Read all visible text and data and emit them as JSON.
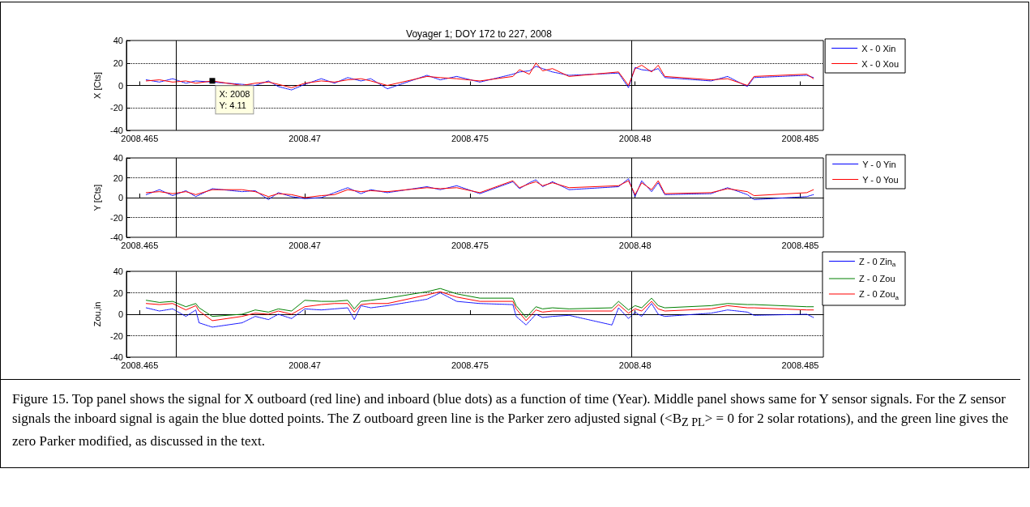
{
  "chart_data": [
    {
      "type": "line",
      "title": "Voyager 1; DOY 172 to 227, 2008",
      "ylabel": "X [Cts]",
      "xlim": [
        2008.4646,
        2008.4857
      ],
      "xticks": [
        2008.465,
        2008.47,
        2008.475,
        2008.48,
        2008.485
      ],
      "ylim": [
        -40,
        40
      ],
      "yticks": [
        -40,
        -20,
        0,
        20,
        40
      ],
      "grid": "y",
      "legend": "top right",
      "marker": "none",
      "x": [
        2008.4652,
        2008.4656,
        2008.466,
        2008.4664,
        2008.4667,
        2008.4672,
        2008.4681,
        2008.4685,
        2008.4689,
        2008.4692,
        2008.4696,
        2008.47,
        2008.4705,
        2008.4709,
        2008.4713,
        2008.4717,
        2008.472,
        2008.4725,
        2008.4737,
        2008.4741,
        2008.4746,
        2008.4753,
        2008.4763,
        2008.4765,
        2008.4768,
        2008.477,
        2008.4772,
        2008.4775,
        2008.478,
        2008.4795,
        2008.4798,
        2008.48,
        2008.4802,
        2008.4805,
        2008.4807,
        2008.4809,
        2008.4823,
        2008.4828,
        2008.4834,
        2008.4836,
        2008.4852,
        2008.4854
      ],
      "series": [
        {
          "name": "X - 0 Xin",
          "color": "#0000ff",
          "line_style": "dotted",
          "values": [
            5,
            3,
            6,
            2,
            4,
            3,
            1,
            0,
            4,
            -1,
            -4,
            1,
            6,
            2,
            7,
            4,
            6,
            -3,
            9,
            5,
            8,
            3,
            10,
            12,
            13,
            17,
            15,
            12,
            9,
            11,
            -2,
            16,
            14,
            13,
            15,
            7,
            4,
            8,
            -1,
            7,
            9,
            7
          ]
        },
        {
          "name": "X - 0 Xou",
          "color": "#ff0000",
          "line_style": "solid",
          "values": [
            4,
            5,
            3,
            4,
            2,
            4,
            0,
            2,
            3,
            1,
            -2,
            2,
            4,
            3,
            5,
            6,
            4,
            0,
            8,
            7,
            6,
            4,
            8,
            14,
            10,
            20,
            13,
            15,
            8,
            12,
            0,
            15,
            18,
            12,
            18,
            8,
            5,
            6,
            0,
            8,
            10,
            6
          ]
        }
      ],
      "ref_lines": [
        {
          "axis": "x",
          "value": 2008.4661,
          "color": "#000000"
        },
        {
          "axis": "x",
          "value": 2008.4799,
          "color": "#000000"
        }
      ],
      "annotations": [
        {
          "text": "X: 2008\nY: 4.11",
          "x": 2008.4672,
          "y": 4.11
        }
      ]
    },
    {
      "type": "line",
      "ylabel": "Y [Cts]",
      "xlim": [
        2008.4646,
        2008.4857
      ],
      "xticks": [
        2008.465,
        2008.47,
        2008.475,
        2008.48,
        2008.485
      ],
      "ylim": [
        -40,
        40
      ],
      "yticks": [
        -40,
        -20,
        0,
        20,
        40
      ],
      "grid": "y",
      "legend": "top right",
      "marker": "none",
      "x": [
        2008.4652,
        2008.4656,
        2008.466,
        2008.4664,
        2008.4667,
        2008.4672,
        2008.4681,
        2008.4685,
        2008.4689,
        2008.4692,
        2008.4696,
        2008.47,
        2008.4705,
        2008.4709,
        2008.4713,
        2008.4717,
        2008.472,
        2008.4725,
        2008.4737,
        2008.4741,
        2008.4746,
        2008.4753,
        2008.4763,
        2008.4765,
        2008.4768,
        2008.477,
        2008.4772,
        2008.4775,
        2008.478,
        2008.4795,
        2008.4798,
        2008.48,
        2008.4802,
        2008.4805,
        2008.4807,
        2008.4809,
        2008.4823,
        2008.4828,
        2008.4834,
        2008.4836,
        2008.4852,
        2008.4854
      ],
      "series": [
        {
          "name": "Y - 0 Yin",
          "color": "#0000ff",
          "line_style": "dotted",
          "values": [
            3,
            8,
            2,
            7,
            1,
            9,
            6,
            7,
            -2,
            5,
            1,
            -1,
            0,
            5,
            10,
            4,
            8,
            5,
            11,
            8,
            12,
            4,
            16,
            9,
            15,
            18,
            11,
            16,
            8,
            11,
            19,
            1,
            17,
            6,
            15,
            3,
            4,
            10,
            3,
            -2,
            1,
            3
          ]
        },
        {
          "name": "Y - 0 You",
          "color": "#ff0000",
          "line_style": "solid",
          "values": [
            5,
            6,
            4,
            6,
            3,
            8,
            8,
            6,
            1,
            4,
            3,
            0,
            2,
            3,
            8,
            6,
            7,
            6,
            10,
            9,
            10,
            5,
            17,
            10,
            14,
            16,
            12,
            15,
            10,
            12,
            17,
            3,
            15,
            8,
            17,
            4,
            5,
            9,
            6,
            2,
            5,
            8
          ]
        }
      ],
      "ref_lines": [
        {
          "axis": "x",
          "value": 2008.4661,
          "color": "#000000"
        },
        {
          "axis": "x",
          "value": 2008.4799,
          "color": "#000000"
        }
      ]
    },
    {
      "type": "line",
      "ylabel": "Zou,in",
      "xlim": [
        2008.4646,
        2008.4857
      ],
      "xticks": [
        2008.465,
        2008.47,
        2008.475,
        2008.48,
        2008.485
      ],
      "ylim": [
        -40,
        40
      ],
      "yticks": [
        -40,
        -20,
        0,
        20,
        40
      ],
      "grid": "y",
      "legend": "top right",
      "marker": "none",
      "x": [
        2008.4652,
        2008.4656,
        2008.466,
        2008.4664,
        2008.4667,
        2008.4668,
        2008.4672,
        2008.4681,
        2008.4685,
        2008.4689,
        2008.4692,
        2008.4696,
        2008.47,
        2008.4705,
        2008.4709,
        2008.4713,
        2008.4715,
        2008.4717,
        2008.472,
        2008.4725,
        2008.4737,
        2008.4741,
        2008.4746,
        2008.4753,
        2008.4763,
        2008.4764,
        2008.4767,
        2008.477,
        2008.4772,
        2008.4775,
        2008.478,
        2008.4793,
        2008.4795,
        2008.4798,
        2008.48,
        2008.4802,
        2008.4805,
        2008.4807,
        2008.4809,
        2008.4823,
        2008.4828,
        2008.4834,
        2008.4836,
        2008.4852,
        2008.4854
      ],
      "series": [
        {
          "name": "Z - 0 Zin$_{a}$",
          "color": "#0000ff",
          "line_style": "dotted",
          "values": [
            6,
            3,
            5,
            -2,
            4,
            -8,
            -12,
            -8,
            -2,
            -5,
            0,
            -4,
            5,
            4,
            5,
            6,
            -5,
            8,
            6,
            8,
            14,
            20,
            12,
            10,
            9,
            -2,
            -10,
            0,
            -3,
            -2,
            -1,
            -10,
            6,
            -4,
            2,
            -2,
            10,
            0,
            -2,
            1,
            4,
            2,
            -1,
            0,
            -3
          ]
        },
        {
          "name": "Z - 0 Zou",
          "color": "#008000",
          "line_style": "solid",
          "values": [
            13,
            11,
            12,
            7,
            10,
            6,
            -2,
            0,
            4,
            2,
            5,
            3,
            13,
            12,
            12,
            13,
            5,
            12,
            13,
            15,
            21,
            24,
            19,
            15,
            15,
            8,
            -3,
            7,
            5,
            6,
            5,
            6,
            12,
            4,
            8,
            6,
            15,
            8,
            6,
            8,
            10,
            9,
            9,
            7,
            7
          ]
        },
        {
          "name": "Z - 0 Zou$_{a}$",
          "color": "#ff0000",
          "line_style": "solid",
          "values": [
            10,
            9,
            10,
            4,
            8,
            3,
            -6,
            -2,
            1,
            0,
            3,
            0,
            7,
            9,
            10,
            10,
            2,
            9,
            10,
            10,
            18,
            21,
            16,
            12,
            12,
            5,
            -6,
            4,
            2,
            3,
            3,
            3,
            9,
            1,
            5,
            3,
            12,
            5,
            3,
            5,
            8,
            6,
            6,
            4,
            4
          ]
        }
      ],
      "ref_lines": [
        {
          "axis": "x",
          "value": 2008.4661,
          "color": "#000000"
        },
        {
          "axis": "x",
          "value": 2008.4799,
          "color": "#000000"
        }
      ],
      "annotations": [
        "Figure 15. Top panel shows the signal for X outboard (red line) and inboard (blue dots) as a function of time (Year). Middle panel shows same for Y sensor signals. For the Z sensor signals the inboard signal is again the blue dotted points. The Z outboard green line is the Parker zero adjusted signal (<B$_{Z PL}$> = 0 for 2 solar rotations), and the green line gives the zero Parker modified, as discussed in the text."
      ]
    }
  ]
}
